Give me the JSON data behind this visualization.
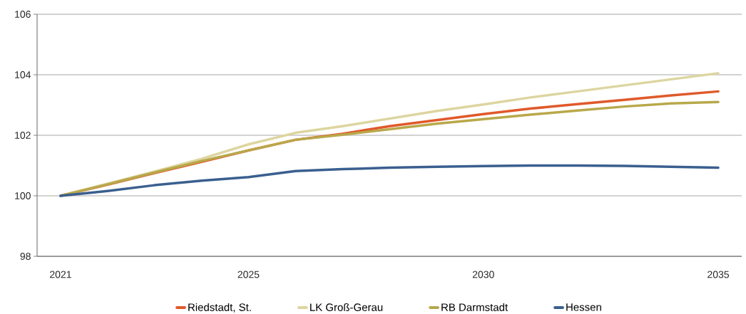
{
  "chart_data": {
    "type": "line",
    "categories": [
      "2021",
      null,
      null,
      null,
      "2025",
      null,
      null,
      null,
      null,
      "2030",
      null,
      null,
      null,
      null,
      "2035"
    ],
    "series": [
      {
        "name": "Riedstadt, St.",
        "color": "#e0592a",
        "values": [
          100,
          100.37,
          100.75,
          101.12,
          101.5,
          101.85,
          102.05,
          102.3,
          102.5,
          102.7,
          102.88,
          103.03,
          103.17,
          103.32,
          103.45
        ]
      },
      {
        "name": "LK Groß-Gerau",
        "color": "#ddd5a0",
        "values": [
          100,
          100.4,
          100.8,
          101.22,
          101.7,
          102.08,
          102.3,
          102.55,
          102.8,
          103.02,
          103.25,
          103.45,
          103.65,
          103.85,
          104.05
        ]
      },
      {
        "name": "RB Darmstadt",
        "color": "#b8a84a",
        "values": [
          100,
          100.38,
          100.77,
          101.15,
          101.5,
          101.85,
          102.02,
          102.2,
          102.38,
          102.53,
          102.68,
          102.82,
          102.95,
          103.05,
          103.1
        ]
      },
      {
        "name": "Hessen",
        "color": "#3a5f8f",
        "values": [
          100,
          100.16,
          100.35,
          100.5,
          100.62,
          100.82,
          100.88,
          100.93,
          100.96,
          100.98,
          101.0,
          101.0,
          100.99,
          100.96,
          100.93
        ]
      }
    ],
    "ylim": [
      98,
      106
    ],
    "yticks": [
      98,
      100,
      102,
      104,
      106
    ],
    "grid": "y",
    "legend": "bottom",
    "marker": "none",
    "line_style": "solid"
  }
}
